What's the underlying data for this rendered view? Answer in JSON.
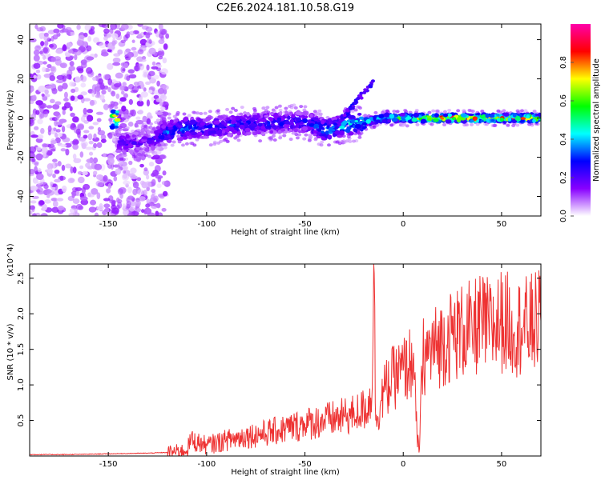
{
  "title": "C2E6.2024.181.10.58.G19",
  "chart_data": [
    {
      "type": "heatmap",
      "title": "C2E6.2024.181.10.58.G19",
      "xlabel": "Height of straight line (km)",
      "ylabel": "Frequency (Hz)",
      "xlim": [
        -190,
        70
      ],
      "ylim": [
        -50,
        48
      ],
      "xticks": [
        -150,
        -100,
        -50,
        0,
        50
      ],
      "yticks": [
        -40,
        -20,
        0,
        20,
        40
      ],
      "colorbar": {
        "label": "Normalized spectral amplitude",
        "range": [
          0,
          1
        ],
        "ticks": [
          0.0,
          0.2,
          0.4,
          0.6,
          0.8
        ],
        "tick_labels": [
          "0.0",
          "0.2",
          "0.4",
          "0.6",
          "0.8"
        ],
        "colormap": [
          "#ffffff",
          "#8800ff",
          "#0000ff",
          "#00ffff",
          "#00ff00",
          "#ffff00",
          "#ff0000",
          "#ff00aa"
        ]
      },
      "ridge": [
        {
          "x": -145,
          "y": -13,
          "amp": 0.25
        },
        {
          "x": -130,
          "y": -12,
          "amp": 0.2
        },
        {
          "x": -120,
          "y": -7,
          "amp": 0.35
        },
        {
          "x": -110,
          "y": -5,
          "amp": 0.35
        },
        {
          "x": -100,
          "y": -5,
          "amp": 0.3
        },
        {
          "x": -90,
          "y": -4,
          "amp": 0.3
        },
        {
          "x": -80,
          "y": -3,
          "amp": 0.3
        },
        {
          "x": -70,
          "y": -3,
          "amp": 0.3
        },
        {
          "x": -60,
          "y": -2,
          "amp": 0.3
        },
        {
          "x": -50,
          "y": -2,
          "amp": 0.3
        },
        {
          "x": -40,
          "y": -6,
          "amp": 0.4
        },
        {
          "x": -30,
          "y": -4,
          "amp": 0.45
        },
        {
          "x": -20,
          "y": -2,
          "amp": 0.5
        },
        {
          "x": -10,
          "y": 0,
          "amp": 0.55
        },
        {
          "x": 0,
          "y": 0,
          "amp": 0.6
        },
        {
          "x": 10,
          "y": 0,
          "amp": 0.7
        },
        {
          "x": 20,
          "y": 0,
          "amp": 0.85
        },
        {
          "x": 30,
          "y": 0,
          "amp": 0.9
        },
        {
          "x": 40,
          "y": 0,
          "amp": 0.85
        },
        {
          "x": 50,
          "y": 0,
          "amp": 0.8
        },
        {
          "x": 60,
          "y": 0,
          "amp": 0.85
        },
        {
          "x": 70,
          "y": 0,
          "amp": 0.8
        }
      ]
    },
    {
      "type": "line",
      "xlabel": "Height of straight line (km)",
      "ylabel": "SNR (10 * v/v)",
      "y_multiplier_label": "(x10^4)",
      "xlim": [
        -190,
        70
      ],
      "ylim": [
        0,
        2.7
      ],
      "xticks": [
        -150,
        -100,
        -50,
        0,
        50
      ],
      "yticks": [
        0.5,
        1.0,
        1.5,
        2.0,
        2.5
      ],
      "ytick_labels": [
        "0.5",
        "1.0",
        "1.5",
        "2.0",
        "2.5"
      ],
      "series": [
        {
          "color": "#ee3333",
          "x": [
            -190,
            -170,
            -150,
            -130,
            -120,
            -110,
            -108,
            -100,
            -90,
            -80,
            -70,
            -60,
            -50,
            -40,
            -30,
            -25,
            -20,
            -16,
            -15,
            -14,
            -10,
            -5,
            0,
            5,
            7,
            8,
            10,
            15,
            20,
            25,
            30,
            35,
            40,
            45,
            50,
            55,
            60,
            65,
            70
          ],
          "values": [
            0.02,
            0.02,
            0.03,
            0.04,
            0.05,
            0.08,
            0.22,
            0.15,
            0.22,
            0.28,
            0.32,
            0.38,
            0.45,
            0.5,
            0.55,
            0.6,
            0.65,
            0.8,
            2.7,
            0.5,
            0.9,
            1.1,
            1.2,
            1.35,
            0.3,
            0.05,
            1.4,
            1.5,
            1.6,
            1.7,
            1.75,
            1.8,
            1.85,
            1.8,
            1.9,
            1.85,
            1.8,
            1.85,
            1.9
          ]
        }
      ]
    }
  ]
}
